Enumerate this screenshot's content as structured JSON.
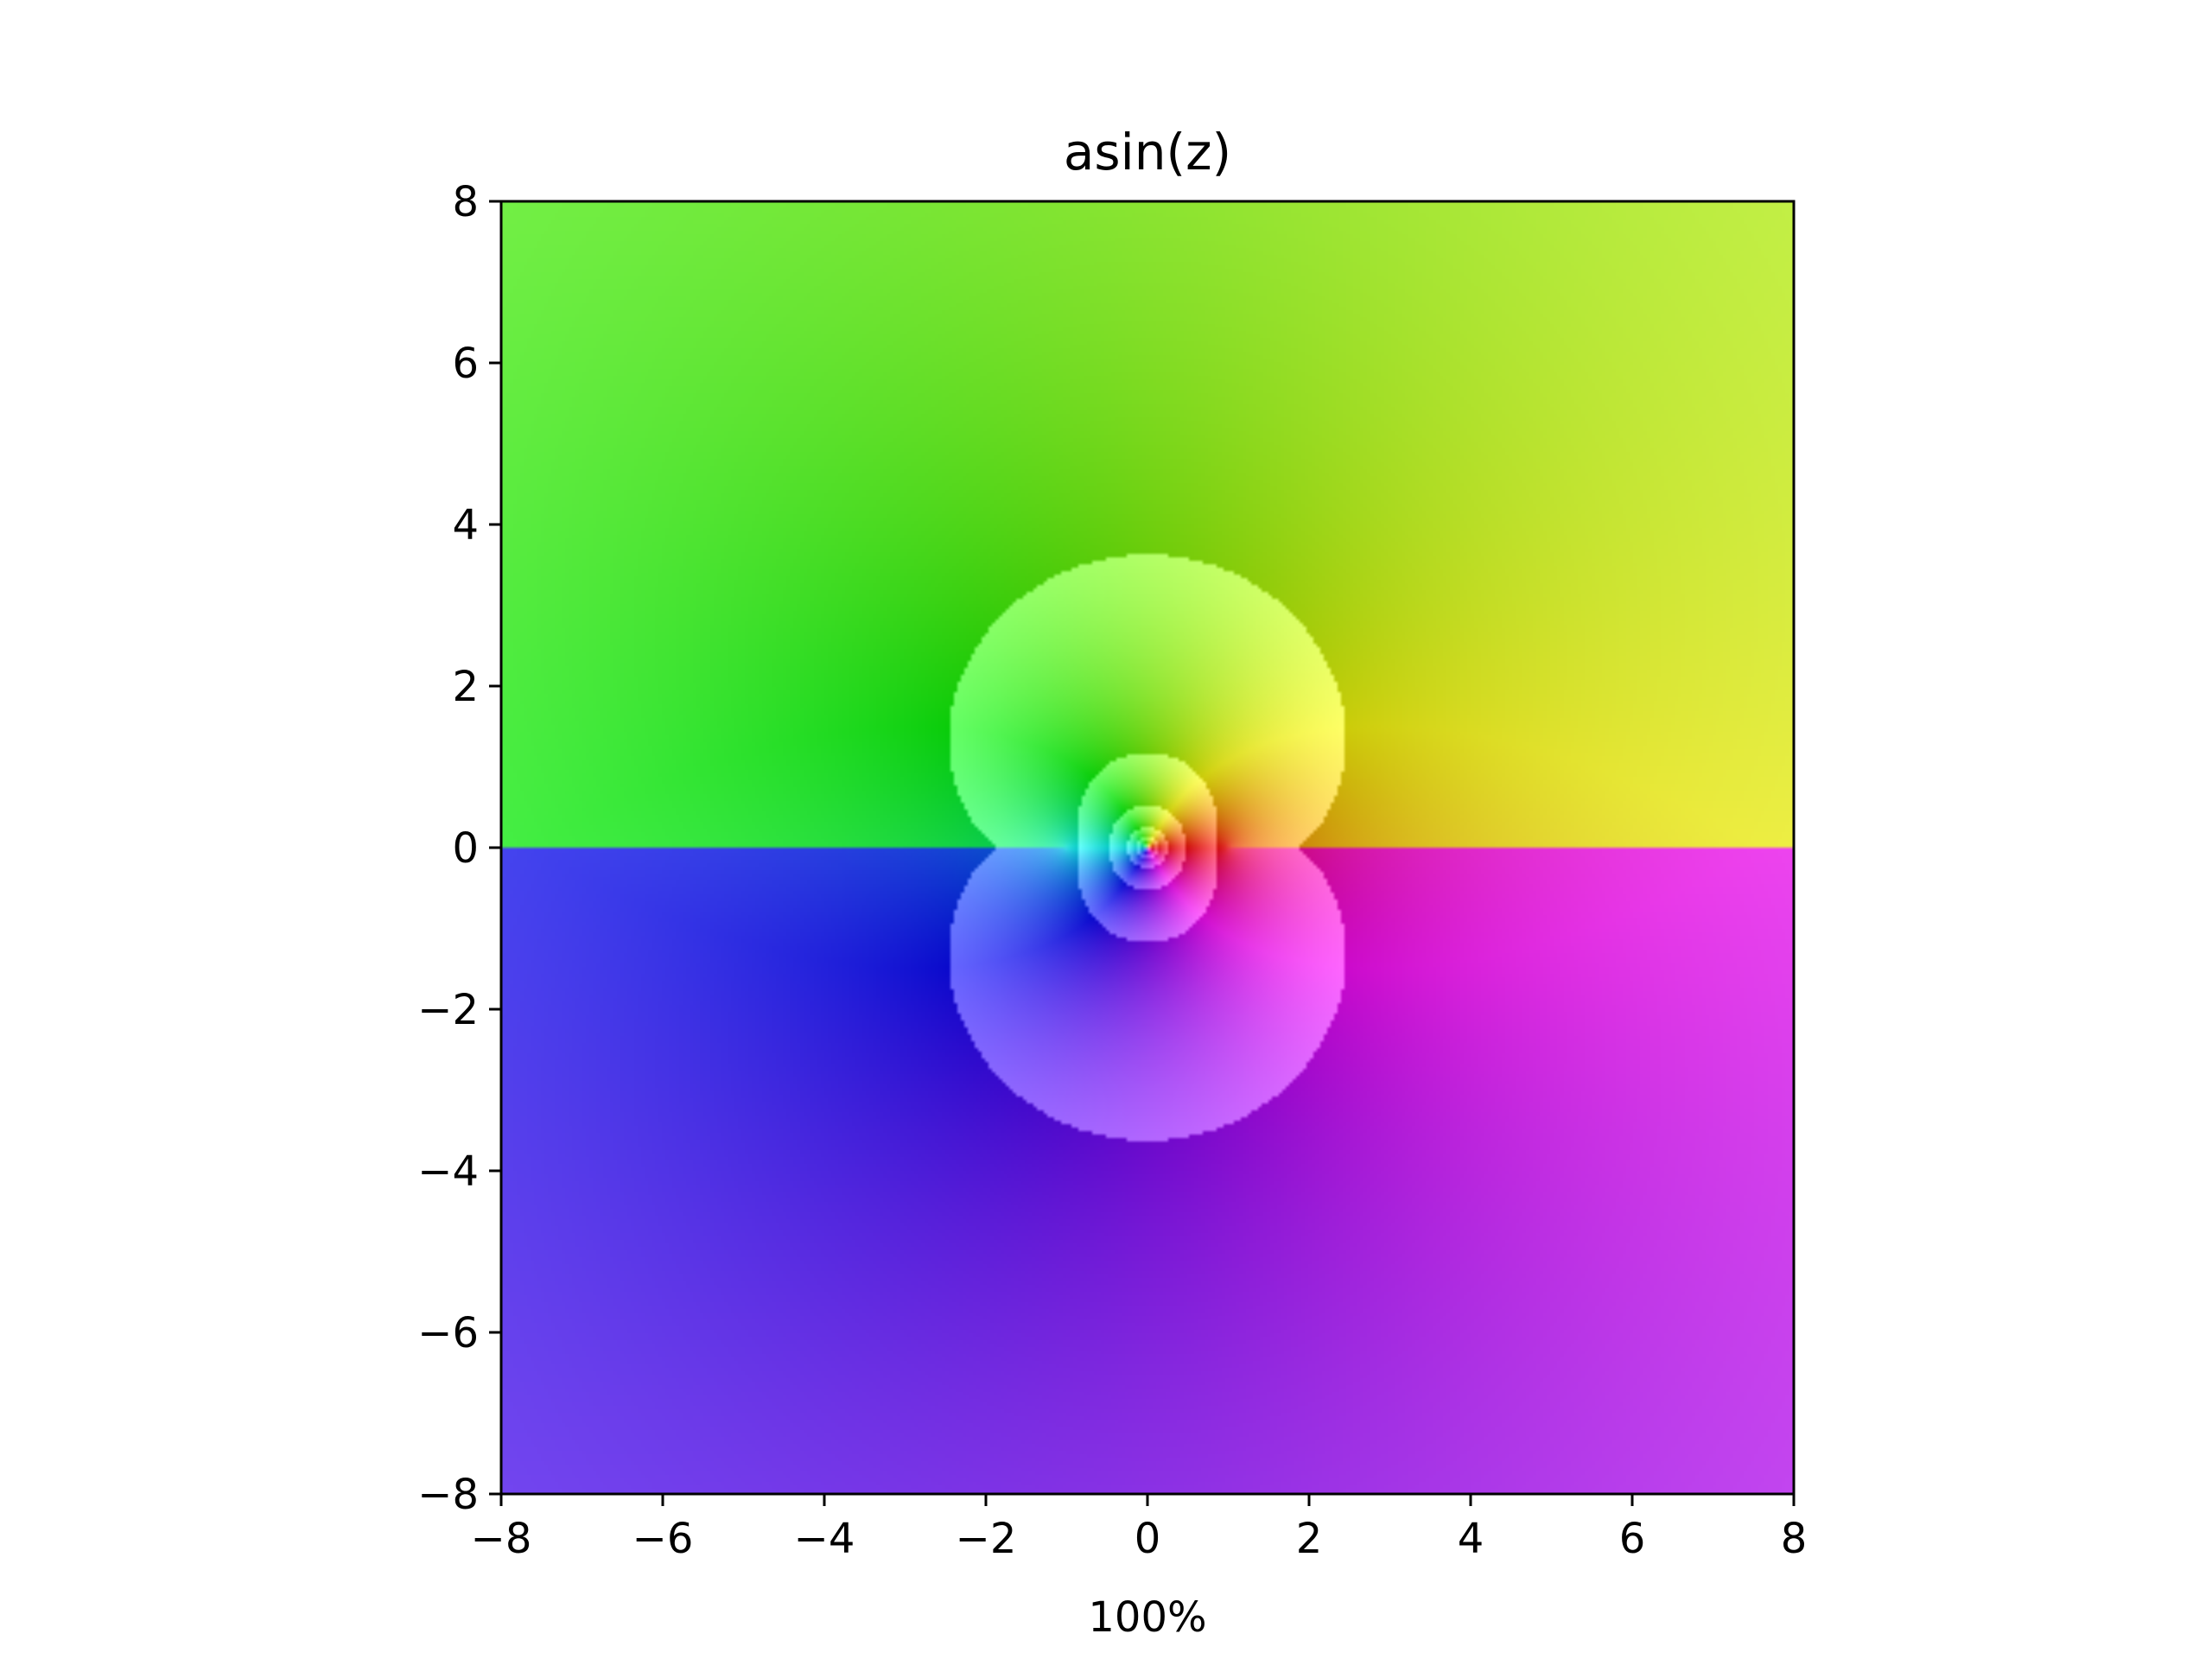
{
  "chart_data": {
    "type": "heatmap",
    "title": "asin(z)",
    "xlabel": "100%",
    "ylabel": "",
    "xlim": [
      -8,
      8
    ],
    "ylim": [
      -8,
      8
    ],
    "xticks": [
      -8,
      -6,
      -4,
      -2,
      0,
      2,
      4,
      6,
      8
    ],
    "yticks": [
      -8,
      -6,
      -4,
      -2,
      0,
      2,
      4,
      6,
      8
    ],
    "xtick_labels": [
      "−8",
      "−6",
      "−4",
      "−2",
      "0",
      "2",
      "4",
      "6",
      "8"
    ],
    "ytick_labels": [
      "−8",
      "−6",
      "−4",
      "−2",
      "0",
      "2",
      "4",
      "6",
      "8"
    ],
    "grid": false,
    "colormap": "domain coloring (hue = argument of asin(z), brightness cycles with log modulus)"
  }
}
